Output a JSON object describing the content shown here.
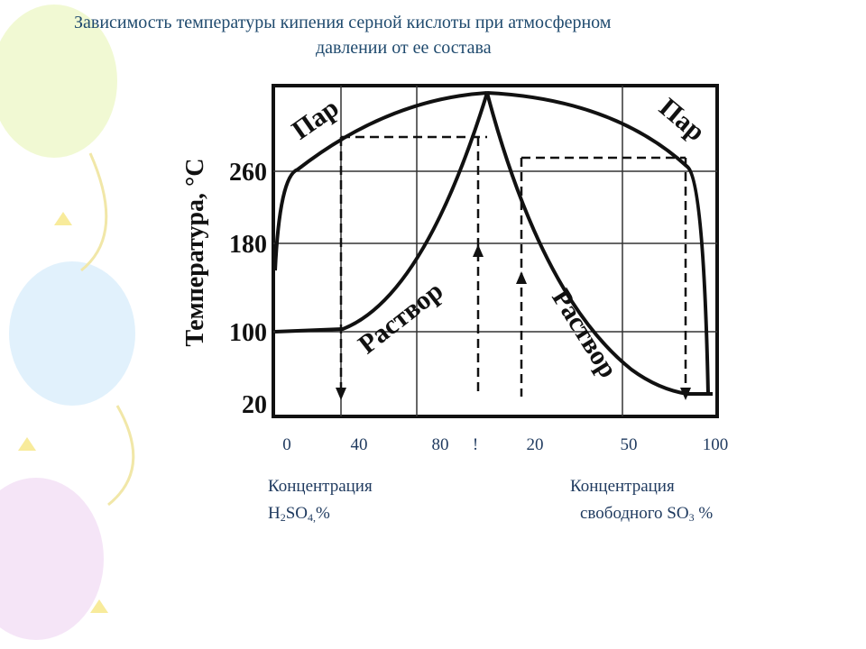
{
  "title": {
    "line1": "Зависимость температуры кипения серной кислоты при атмосферном",
    "line2": "давлении от ее состава"
  },
  "diagram": {
    "y_axis_label": "Температура, °С",
    "y_tick_labels": [
      "260",
      "180",
      "100",
      "20"
    ],
    "x_tick_labels": [
      "0",
      "40",
      "80",
      "!",
      "20",
      "50",
      "100"
    ],
    "region_labels": {
      "vapor_left": "Пар",
      "vapor_right": "Пар",
      "liquid_left": "Раствор",
      "liquid_right": "Раствор"
    }
  },
  "captions": {
    "left": {
      "line1": "Концентрация",
      "line2": [
        "H",
        "2",
        "SO",
        "4,",
        "%"
      ]
    },
    "right": {
      "line1": "Концентрация",
      "line2": [
        "свободного SO",
        "3",
        " %"
      ]
    }
  }
}
